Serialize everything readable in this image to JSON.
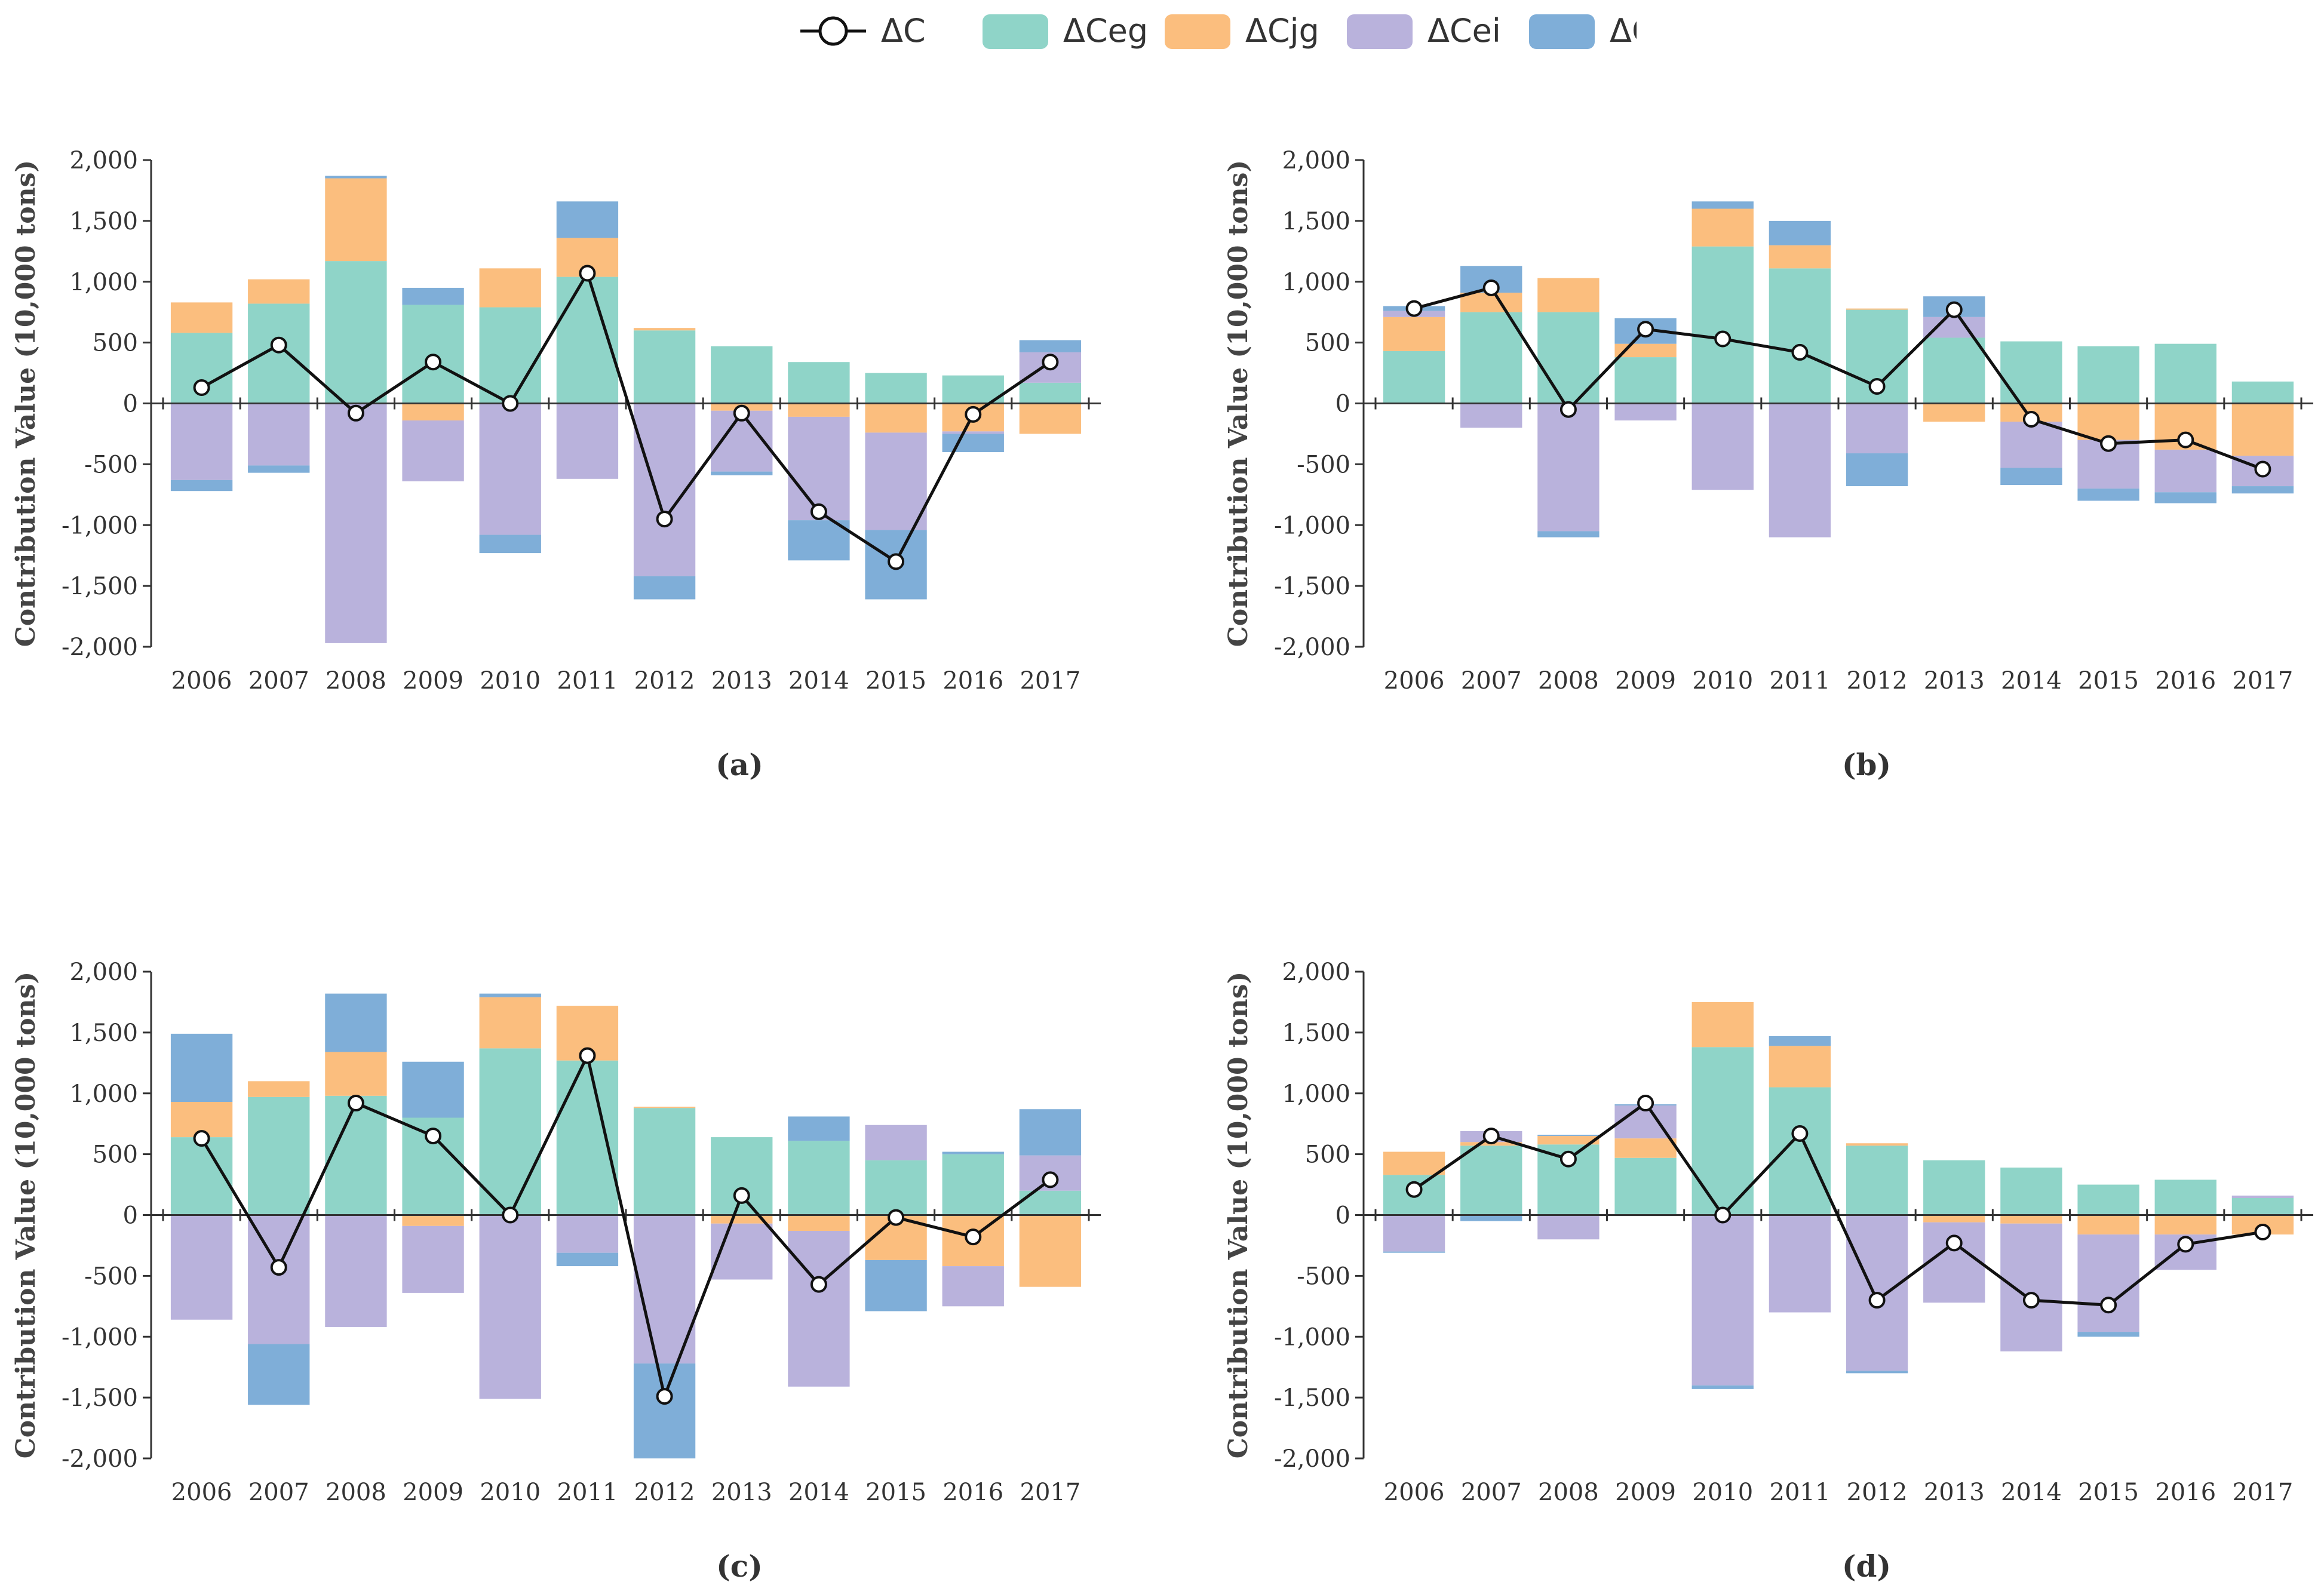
{
  "colors": {
    "C": "#111111",
    "Ceg": "#8FD4C8",
    "Cjg": "#FBBE7E",
    "Cei": "#B9B2DC",
    "Ces": "#7FAED8"
  },
  "legend": [
    {
      "key": "C",
      "label": "ΔC",
      "icon": "line-circle-marker"
    },
    {
      "key": "Ceg",
      "label": "ΔCeg",
      "icon": "swatch"
    },
    {
      "key": "Cjg",
      "label": "ΔCjg",
      "icon": "swatch"
    },
    {
      "key": "Cei",
      "label": "ΔCei",
      "icon": "swatch"
    },
    {
      "key": "Ces",
      "label": "ΔCes",
      "icon": "swatch"
    }
  ],
  "chart_data": [
    {
      "type": "bar",
      "stacked": true,
      "panel": "(a)",
      "ylabel": "Contribution Value (10,000 tons)",
      "ylim": [
        -2000,
        2000
      ],
      "yticks": [
        2000,
        1500,
        1000,
        500,
        0,
        -500,
        -1000,
        -1500,
        -2000
      ],
      "ytick_labels": [
        "2,000",
        "1,500",
        "1,000",
        "500",
        "0",
        "-500",
        "-1,000",
        "-1,500",
        "-2,000"
      ],
      "categories": [
        "2006",
        "2007",
        "2008",
        "2009",
        "2010",
        "2011",
        "2012",
        "2013",
        "2014",
        "2015",
        "2016",
        "2017"
      ],
      "series": [
        {
          "name": "ΔCeg",
          "key": "Ceg",
          "values": [
            580,
            820,
            1170,
            810,
            790,
            1040,
            600,
            470,
            340,
            250,
            230,
            170
          ]
        },
        {
          "name": "ΔCjg",
          "key": "Cjg",
          "values": [
            250,
            200,
            680,
            -140,
            320,
            320,
            20,
            -60,
            -110,
            -240,
            -230,
            -250
          ]
        },
        {
          "name": "ΔCei",
          "key": "Cei",
          "values": [
            -630,
            -510,
            -1970,
            -500,
            -1080,
            -620,
            -1420,
            -500,
            -850,
            -800,
            -20,
            250
          ]
        },
        {
          "name": "ΔCes",
          "key": "Ces",
          "values": [
            -90,
            -60,
            20,
            140,
            -150,
            300,
            -190,
            -30,
            -330,
            -570,
            -150,
            100
          ]
        }
      ],
      "line": {
        "name": "ΔC",
        "key": "C",
        "values": [
          130,
          480,
          -80,
          340,
          0,
          1070,
          -950,
          -80,
          -890,
          -1300,
          -90,
          340
        ]
      }
    },
    {
      "type": "bar",
      "stacked": true,
      "panel": "(b)",
      "ylabel": "Contribution Value (10,000 tons)",
      "ylim": [
        -2000,
        2000
      ],
      "yticks": [
        2000,
        1500,
        1000,
        500,
        0,
        -500,
        -1000,
        -1500,
        -2000
      ],
      "ytick_labels": [
        "2,000",
        "1,500",
        "1,000",
        "500",
        "0",
        "-500",
        "-1,000",
        "-1,500",
        "-2,000"
      ],
      "categories": [
        "2006",
        "2007",
        "2008",
        "2009",
        "2010",
        "2011",
        "2012",
        "2013",
        "2014",
        "2015",
        "2016",
        "2017"
      ],
      "series": [
        {
          "name": "ΔCeg",
          "key": "Ceg",
          "values": [
            430,
            750,
            750,
            380,
            1290,
            1110,
            770,
            540,
            510,
            470,
            490,
            180
          ]
        },
        {
          "name": "ΔCjg",
          "key": "Cjg",
          "values": [
            280,
            160,
            280,
            110,
            310,
            190,
            10,
            -150,
            -150,
            -300,
            -380,
            -430
          ]
        },
        {
          "name": "ΔCei",
          "key": "Cei",
          "values": [
            50,
            -200,
            -1050,
            -140,
            -710,
            -1100,
            -410,
            170,
            -380,
            -400,
            -350,
            -250
          ]
        },
        {
          "name": "ΔCes",
          "key": "Ces",
          "values": [
            40,
            220,
            -50,
            210,
            60,
            200,
            -270,
            170,
            -140,
            -100,
            -90,
            -60
          ]
        }
      ],
      "line": {
        "name": "ΔC",
        "key": "C",
        "values": [
          780,
          950,
          -50,
          610,
          530,
          420,
          140,
          770,
          -130,
          -330,
          -300,
          -540
        ]
      }
    },
    {
      "type": "bar",
      "stacked": true,
      "panel": "(c)",
      "ylabel": "Contribution Value (10,000 tons)",
      "ylim": [
        -2000,
        2000
      ],
      "yticks": [
        2000,
        1500,
        1000,
        500,
        0,
        -500,
        -1000,
        -1500,
        -2000
      ],
      "ytick_labels": [
        "2,000",
        "1,500",
        "1,000",
        "500",
        "0",
        "-500",
        "-1,000",
        "-1,500",
        "-2,000"
      ],
      "categories": [
        "2006",
        "2007",
        "2008",
        "2009",
        "2010",
        "2011",
        "2012",
        "2013",
        "2014",
        "2015",
        "2016",
        "2017"
      ],
      "series": [
        {
          "name": "ΔCeg",
          "key": "Ceg",
          "values": [
            640,
            970,
            980,
            800,
            1370,
            1270,
            880,
            640,
            610,
            450,
            500,
            200
          ]
        },
        {
          "name": "ΔCjg",
          "key": "Cjg",
          "values": [
            290,
            130,
            360,
            -90,
            420,
            450,
            10,
            -70,
            -130,
            -370,
            -420,
            -590
          ]
        },
        {
          "name": "ΔCei",
          "key": "Cei",
          "values": [
            -860,
            -1060,
            -920,
            -550,
            -1510,
            -310,
            -1220,
            -460,
            -1280,
            290,
            -330,
            290
          ]
        },
        {
          "name": "ΔCes",
          "key": "Ces",
          "values": [
            560,
            -500,
            480,
            460,
            30,
            -110,
            -780,
            0,
            200,
            -420,
            20,
            380
          ]
        }
      ],
      "line": {
        "name": "ΔC",
        "key": "C",
        "values": [
          630,
          -430,
          920,
          650,
          0,
          1310,
          -1490,
          160,
          -570,
          -20,
          -180,
          290
        ]
      }
    },
    {
      "type": "bar",
      "stacked": true,
      "panel": "(d)",
      "ylabel": "Contribution Value (10,000 tons)",
      "ylim": [
        -2000,
        2000
      ],
      "yticks": [
        2000,
        1500,
        1000,
        500,
        0,
        -500,
        -1000,
        -1500,
        -2000
      ],
      "ytick_labels": [
        "2,000",
        "1,500",
        "1,000",
        "500",
        "0",
        "-500",
        "-1,000",
        "-1,500",
        "-2,000"
      ],
      "categories": [
        "2006",
        "2007",
        "2008",
        "2009",
        "2010",
        "2011",
        "2012",
        "2013",
        "2014",
        "2015",
        "2016",
        "2017"
      ],
      "series": [
        {
          "name": "ΔCeg",
          "key": "Ceg",
          "values": [
            330,
            570,
            580,
            470,
            1380,
            1050,
            570,
            450,
            390,
            250,
            290,
            140
          ]
        },
        {
          "name": "ΔCjg",
          "key": "Cjg",
          "values": [
            190,
            30,
            70,
            160,
            370,
            340,
            20,
            -60,
            -70,
            -160,
            -160,
            -160
          ]
        },
        {
          "name": "ΔCei",
          "key": "Cei",
          "values": [
            -300,
            90,
            -200,
            270,
            -1400,
            -800,
            -1280,
            -660,
            -1050,
            -800,
            -290,
            20
          ]
        },
        {
          "name": "ΔCes",
          "key": "Ces",
          "values": [
            -10,
            -50,
            10,
            10,
            -30,
            80,
            -20,
            0,
            0,
            -40,
            0,
            0
          ]
        }
      ],
      "line": {
        "name": "ΔC",
        "key": "C",
        "values": [
          210,
          650,
          460,
          920,
          0,
          670,
          -700,
          -230,
          -700,
          -740,
          -240,
          -140
        ]
      }
    }
  ]
}
